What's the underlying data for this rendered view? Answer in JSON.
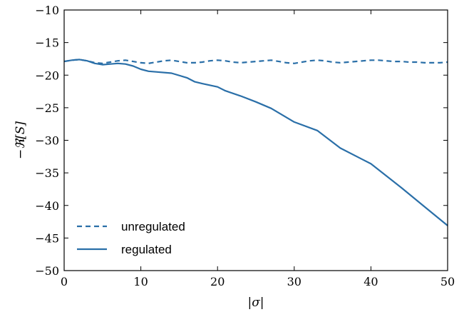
{
  "chart_data": {
    "type": "line",
    "title": "",
    "xlabel": "|σ|",
    "ylabel": "−ℜ[S]",
    "xlim": [
      0,
      50
    ],
    "ylim": [
      -50,
      -10
    ],
    "xticks": [
      0,
      10,
      20,
      30,
      40,
      50
    ],
    "yticks": [
      -50,
      -45,
      -40,
      -35,
      -30,
      -25,
      -20,
      -15,
      -10
    ],
    "xtick_labels": [
      "0",
      "10",
      "20",
      "30",
      "40",
      "50"
    ],
    "ytick_labels": [
      "−50",
      "−45",
      "−40",
      "−35",
      "−30",
      "−25",
      "−20",
      "−15",
      "−10"
    ],
    "grid": false,
    "legend_position": "lower-left",
    "color": "#2a6fa8",
    "series": [
      {
        "name": "unregulated",
        "style": "dashed",
        "x": [
          0,
          1,
          2,
          3,
          4,
          5,
          6,
          7,
          8,
          9,
          10,
          11,
          12,
          13,
          14,
          15,
          16,
          17,
          18,
          19,
          20,
          21,
          22,
          23,
          24,
          25,
          26,
          27,
          28,
          29,
          30,
          31,
          32,
          33,
          34,
          35,
          36,
          37,
          38,
          39,
          40,
          41,
          42,
          43,
          44,
          45,
          46,
          47,
          48,
          49,
          50
        ],
        "y": [
          -17.9,
          -17.7,
          -17.6,
          -17.8,
          -18.1,
          -18.2,
          -18.0,
          -17.8,
          -17.7,
          -17.9,
          -18.1,
          -18.2,
          -18.0,
          -17.8,
          -17.7,
          -17.9,
          -18.1,
          -18.1,
          -18.0,
          -17.8,
          -17.7,
          -17.8,
          -18.0,
          -18.1,
          -18.0,
          -17.9,
          -17.8,
          -17.7,
          -17.9,
          -18.1,
          -18.2,
          -18.0,
          -17.8,
          -17.7,
          -17.8,
          -18.0,
          -18.1,
          -18.0,
          -17.9,
          -17.8,
          -17.7,
          -17.7,
          -17.8,
          -17.9,
          -17.9,
          -18.0,
          -18.0,
          -18.1,
          -18.1,
          -18.1,
          -18.0
        ]
      },
      {
        "name": "regulated",
        "style": "solid",
        "x": [
          0,
          1,
          2,
          3,
          4,
          5,
          6,
          7,
          8,
          9,
          10,
          11,
          12,
          14,
          16,
          17,
          18,
          20,
          21,
          23,
          25,
          27,
          30,
          33,
          36,
          40,
          44,
          47,
          50
        ],
        "y": [
          -17.9,
          -17.7,
          -17.6,
          -17.8,
          -18.2,
          -18.4,
          -18.3,
          -18.2,
          -18.3,
          -18.6,
          -19.1,
          -19.4,
          -19.5,
          -19.7,
          -20.4,
          -21.0,
          -21.3,
          -21.8,
          -22.4,
          -23.2,
          -24.1,
          -25.1,
          -27.2,
          -28.5,
          -31.2,
          -33.6,
          -37.3,
          -40.2,
          -43.1
        ]
      }
    ]
  }
}
